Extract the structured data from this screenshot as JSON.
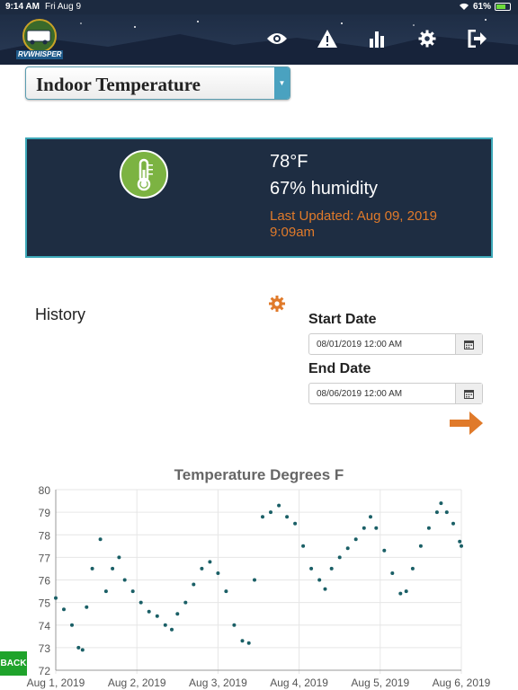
{
  "status_bar": {
    "time": "9:14 AM",
    "date": "Fri Aug 9",
    "battery": "61%"
  },
  "header": {
    "logo_text": "RVWHISPER",
    "nav": [
      {
        "name": "eye-icon"
      },
      {
        "name": "alert-icon"
      },
      {
        "name": "bar-chart-icon"
      },
      {
        "name": "gear-icon"
      },
      {
        "name": "logout-icon"
      }
    ]
  },
  "sensor_select": {
    "value": "Indoor Temperature"
  },
  "reading": {
    "temperature": "78°F",
    "humidity": "67% humidity",
    "last_updated": "Last Updated: Aug 09, 2019 9:09am"
  },
  "history": {
    "title": "History",
    "start_label": "Start Date",
    "start_value": "08/01/2019 12:00 AM",
    "end_label": "End Date",
    "end_value": "08/06/2019 12:00 AM"
  },
  "back_label": "BACK",
  "colors": {
    "accent": "#3da8b8",
    "orange": "#e07a2a",
    "series": "#1a5f66",
    "card": "#1e2d42"
  },
  "chart_data": {
    "type": "scatter",
    "title": "Temperature Degrees F",
    "ylim": [
      72,
      80
    ],
    "yticks": [
      72,
      73,
      74,
      75,
      76,
      77,
      78,
      79,
      80
    ],
    "xlim": [
      0,
      5
    ],
    "xticks": [
      {
        "v": 0,
        "label": "Aug 1, 2019"
      },
      {
        "v": 1,
        "label": "Aug 2, 2019"
      },
      {
        "v": 2,
        "label": "Aug 3, 2019"
      },
      {
        "v": 3,
        "label": "Aug 4, 2019"
      },
      {
        "v": 4,
        "label": "Aug 5, 2019"
      },
      {
        "v": 5,
        "label": "Aug 6, 2019"
      }
    ],
    "series": [
      {
        "values": [
          [
            0.0,
            75.2
          ],
          [
            0.1,
            74.7
          ],
          [
            0.2,
            74.0
          ],
          [
            0.28,
            73.0
          ],
          [
            0.33,
            72.9
          ],
          [
            0.38,
            74.8
          ],
          [
            0.45,
            76.5
          ],
          [
            0.55,
            77.8
          ],
          [
            0.62,
            75.5
          ],
          [
            0.7,
            76.5
          ],
          [
            0.78,
            77.0
          ],
          [
            0.85,
            76.0
          ],
          [
            0.95,
            75.5
          ],
          [
            1.05,
            75.0
          ],
          [
            1.15,
            74.6
          ],
          [
            1.25,
            74.4
          ],
          [
            1.35,
            74.0
          ],
          [
            1.43,
            73.8
          ],
          [
            1.5,
            74.5
          ],
          [
            1.6,
            75.0
          ],
          [
            1.7,
            75.8
          ],
          [
            1.8,
            76.5
          ],
          [
            1.9,
            76.8
          ],
          [
            2.0,
            76.3
          ],
          [
            2.1,
            75.5
          ],
          [
            2.2,
            74.0
          ],
          [
            2.3,
            73.3
          ],
          [
            2.38,
            73.2
          ],
          [
            2.45,
            76.0
          ],
          [
            2.55,
            78.8
          ],
          [
            2.65,
            79.0
          ],
          [
            2.75,
            79.3
          ],
          [
            2.85,
            78.8
          ],
          [
            2.95,
            78.5
          ],
          [
            3.05,
            77.5
          ],
          [
            3.15,
            76.5
          ],
          [
            3.25,
            76.0
          ],
          [
            3.32,
            75.6
          ],
          [
            3.4,
            76.5
          ],
          [
            3.5,
            77.0
          ],
          [
            3.6,
            77.4
          ],
          [
            3.7,
            77.8
          ],
          [
            3.8,
            78.3
          ],
          [
            3.88,
            78.8
          ],
          [
            3.95,
            78.3
          ],
          [
            4.05,
            77.3
          ],
          [
            4.15,
            76.3
          ],
          [
            4.25,
            75.4
          ],
          [
            4.32,
            75.5
          ],
          [
            4.4,
            76.5
          ],
          [
            4.5,
            77.5
          ],
          [
            4.6,
            78.3
          ],
          [
            4.7,
            79.0
          ],
          [
            4.75,
            79.4
          ],
          [
            4.82,
            79.0
          ],
          [
            4.9,
            78.5
          ],
          [
            4.98,
            77.7
          ],
          [
            5.0,
            77.5
          ]
        ]
      }
    ]
  }
}
